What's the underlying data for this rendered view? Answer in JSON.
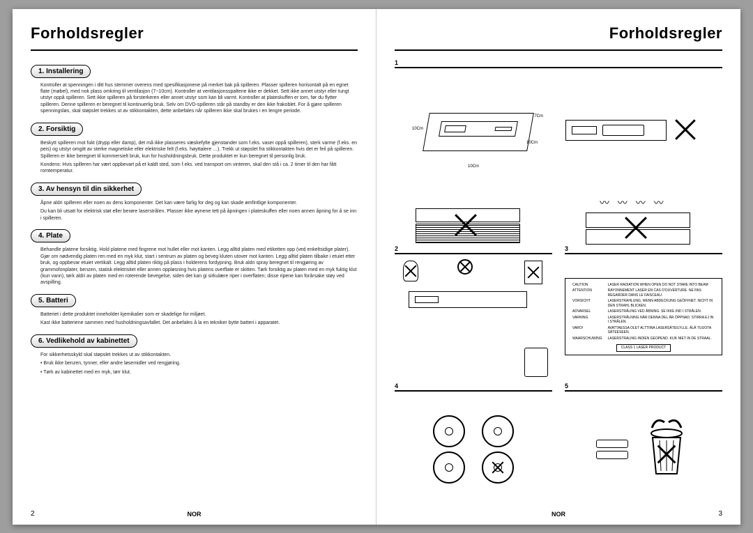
{
  "title": "Forholdsregler",
  "left": {
    "sections": [
      {
        "heading": "1. Installering",
        "paras": [
          "Kontroller at spenningen i ditt hus stemmer overens med spesifikasjonene på merket bak på spilleren. Plasser spilleren horisontalt på en egnet flate (møbel), med nok plass omkring til ventilasjon (7~10cm). Kontroller at ventilasjonsspaltene ikke er dekket. Sett ikke annet utstyr eller tungt utstyr oppå spilleren. Sett ikke spilleren på forsterkeren eller annet utstyr som kan bli varmt. Kontroller at plateskuffen er tom, før du flytter spilleren. Denne spilleren er beregnet til kontinuerlig bruk. Selv om DVD-spilleren står på standby er den ikke frakoblet. For å gjøre spilleren spenningsløs, skal støpslet trekkes ut av stikkontakten, dette anbefales når spilleren ikke skal brukes i en lengre periode."
        ]
      },
      {
        "heading": "2. Forsiktig",
        "paras": [
          "Beskytt spilleren mot fukt (drypp eller damp), det må ikke plasseres væskefylte gjenstander som f.eks. vaser oppå spilleren), sterk varme (f.eks. en peis) og utstyr omgitt av sterke magnetiske eller elektriske felt (f.eks. høyttalere …). Trekk ut støpslet fra stikkontakten hvis det er feil på spilleren. Spilleren er ikke beregnet til kommersielt bruk, kun for husholdningsbruk. Dette produktet er kun beregnet til personlig bruk.",
          "Kondens: Hvis spilleren har vært oppbevart på et kaldt sted, som f.eks. ved transport om vinteren, skal den stå i ca. 2 timer til den har fått romtemperatur."
        ]
      },
      {
        "heading": "3. Av hensyn til din sikkerhet",
        "paras": [
          "Åpne aldri spilleren eller noen av dens komponenter. Det kan være farlig for deg og kan skade ømfintlige komponenter.",
          "Du kan bli utsatt for elektrisk støt eller berøre laserstrålen. Plasser ikke øynene tett på åpningen i plateskuffen eller noen annen åpning for å se inn i spilleren."
        ]
      },
      {
        "heading": "4. Plate",
        "paras": [
          "Behandle platene forsiktig. Hold platene med fingrene mot hullet eller mot kanten. Legg alltid platen med etiketten opp (ved enkeltsidige plater). Gjør om nødvendig platen ren med en myk klut, start i sentrum av platen og beveg kluten utover mot kanten. Legg alltid platen tilbake i etuiet etter bruk, og oppbevar etuiet vertikalt. Legg alltid platen riktig på plass i holderens fordypning. Bruk aldri spray beregnet til rengjøring av grammofonplater, benzen, statisk elektrisitet eller annen oppløsning hvis platens overflate er skitten. Tørk forsiktig av platen med en myk fuktig klut (kun vann), tørk aldri av platen med en roterende bevegelse, siden det kan gi sirkulære riper i overflaten; disse ripene kan forårsake støy ved avspilling."
        ]
      },
      {
        "heading": "5. Batteri",
        "paras": [
          "Batteriet i dette produktet inneholder kjemikalier som er skadelige for miljøet.",
          "Kast ikke batteriene sammen med husholdningsavfallet. Det anbefales å la en tekniker bytte batteri i apparatet."
        ]
      },
      {
        "heading": "6. Vedlikehold av kabinettet",
        "paras": [
          "For sikkerhetsskyld skal støpslet trekkes ut av stikkontakten."
        ],
        "bullets": [
          "Bruk ikke benzen, tynner, eller andre løsemidler ved rengjøring.",
          "Tørk av kabinettet med en myk, tørr klut."
        ]
      }
    ],
    "pageNumber": "2",
    "lang": "NOR"
  },
  "right": {
    "figures": {
      "f1": "1",
      "f2": "2",
      "f3": "3",
      "f4": "4",
      "f5": "5"
    },
    "clearance": {
      "top": "7Cm",
      "side": "10Cm",
      "bottom": "10Cm",
      "right": "10Cm"
    },
    "caution": {
      "rows": [
        [
          "CAUTION",
          "LASER RADIATION WHEN OPEN DO NOT STARE INTO BEAM"
        ],
        [
          "ATTENTION",
          "RAYONNEMENT LASER EN CAS D'OUVERTURE. NE PAS REGARDER DANS LE FAISCEAU."
        ],
        [
          "VORSICHT",
          "LASERSTRAHLUNG, WENN ABDECKUNG GEÖFFNET. NICHT IN DEN STRAHL BLICKEN."
        ],
        [
          "ADVARSEL",
          "LASERSTRÅLING VED ÅBNING. SE IKKE IND I STRÅLEN."
        ],
        [
          "VARNING",
          "LASERSTRÅLNING NÄR DENNA DEL ÄR ÖPPNAD. STIRRA EJ IN I STRÅLEN."
        ],
        [
          "VARO!",
          "AVATTAESSA OLET ALTTIINA LASERSÄTEILYLLE. ÄLÄ TUIJOTA SÄTEESEEN."
        ],
        [
          "WAARSCHUWING",
          "LASERSTRALING INDIEN GEOPEND. KIJK NIET IN DE STRAAL."
        ]
      ],
      "class": "CLASS 1 LASER PRODUCT"
    },
    "pageNumber": "3",
    "lang": "NOR"
  }
}
